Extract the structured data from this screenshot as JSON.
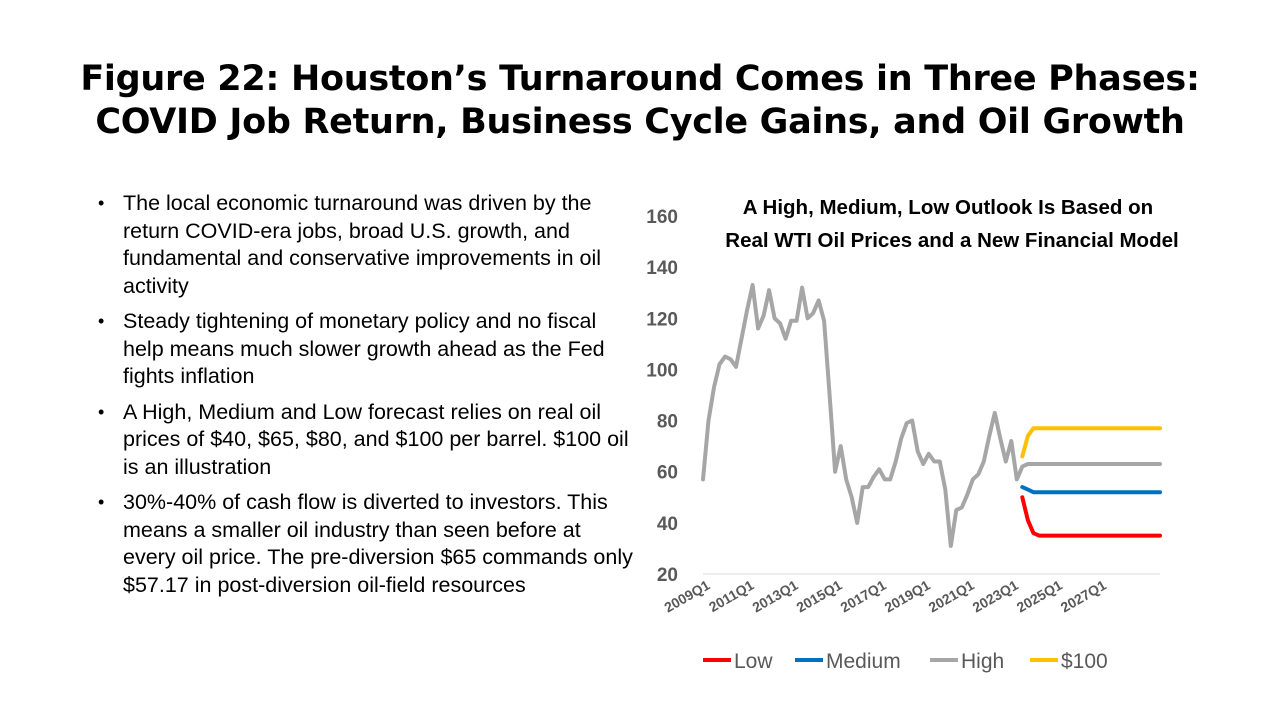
{
  "slide": {
    "title_line1": "Figure 22: Houston’s Turnaround Comes in Three Phases:",
    "title_line2": "COVID Job Return, Business Cycle Gains, and Oil Growth"
  },
  "bullets": [
    "The local economic turnaround was driven by the return COVID-era jobs, broad U.S. growth, and fundamental and conservative improvements in oil activity",
    "Steady tightening of monetary policy and no fiscal help means much slower growth ahead as the Fed fights inflation",
    "A High, Medium and Low forecast relies on real oil prices of $40, $65, $80, and $100 per barrel.  $100 oil is an illustration",
    "30%-40% of cash flow is diverted  to investors. This means a smaller oil industry than seen before at every oil price.  The pre-diversion $65 commands only $57.17 in post-diversion oil-field resources"
  ],
  "chart_data": {
    "type": "line",
    "title_line1": "A High, Medium, Low Outlook Is Based on",
    "title_line2": "Real WTI Oil Prices and a New Financial Model",
    "xlabel": "",
    "ylabel": "",
    "ylim": [
      20,
      160
    ],
    "yticks": [
      20,
      40,
      60,
      80,
      100,
      120,
      140,
      160
    ],
    "x_start": "2009Q1",
    "x_end": "2029Q4",
    "xtick_labels": [
      "2009Q1",
      "2011Q1",
      "2013Q1",
      "2015Q1",
      "2017Q1",
      "2019Q1",
      "2021Q1",
      "2023Q1",
      "2025Q1",
      "2027Q1"
    ],
    "grid": "none",
    "legend_position": "bottom",
    "series": [
      {
        "name": "Low",
        "color": "#ff0000",
        "x": [
          "2023Q3",
          "2023Q4",
          "2024Q1",
          "2024Q2",
          "2029Q4"
        ],
        "values": [
          50,
          41,
          36,
          35,
          35
        ]
      },
      {
        "name": "Medium",
        "color": "#0070c0",
        "x": [
          "2023Q3",
          "2023Q4",
          "2024Q1",
          "2029Q4"
        ],
        "values": [
          54,
          53,
          52,
          52
        ]
      },
      {
        "name": "High",
        "color": "#a6a6a6",
        "x": [
          "2009Q1",
          "2009Q2",
          "2009Q3",
          "2009Q4",
          "2010Q1",
          "2010Q2",
          "2010Q3",
          "2010Q4",
          "2011Q1",
          "2011Q2",
          "2011Q3",
          "2011Q4",
          "2012Q1",
          "2012Q2",
          "2012Q3",
          "2012Q4",
          "2013Q1",
          "2013Q2",
          "2013Q3",
          "2013Q4",
          "2014Q1",
          "2014Q2",
          "2014Q3",
          "2014Q4",
          "2015Q1",
          "2015Q2",
          "2015Q3",
          "2015Q4",
          "2016Q1",
          "2016Q2",
          "2016Q3",
          "2016Q4",
          "2017Q1",
          "2017Q2",
          "2017Q3",
          "2017Q4",
          "2018Q1",
          "2018Q2",
          "2018Q3",
          "2018Q4",
          "2019Q1",
          "2019Q2",
          "2019Q3",
          "2019Q4",
          "2020Q1",
          "2020Q2",
          "2020Q3",
          "2020Q4",
          "2021Q1",
          "2021Q2",
          "2021Q3",
          "2021Q4",
          "2022Q1",
          "2022Q2",
          "2022Q3",
          "2022Q4",
          "2023Q1",
          "2023Q2",
          "2023Q3",
          "2023Q4",
          "2024Q1",
          "2029Q4"
        ],
        "values": [
          57,
          80,
          93,
          102,
          105,
          104,
          101,
          112,
          123,
          133,
          116,
          121,
          131,
          120,
          118,
          112,
          119,
          119,
          132,
          120,
          122,
          127,
          119,
          90,
          60,
          70,
          57,
          50,
          40,
          54,
          54,
          58,
          61,
          57,
          57,
          64,
          73,
          79,
          80,
          68,
          63,
          67,
          64,
          64,
          53,
          31,
          45,
          46,
          51,
          57,
          59,
          64,
          74,
          83,
          73,
          64,
          72,
          57,
          62,
          63,
          63,
          63
        ]
      },
      {
        "name": "$100",
        "color": "#ffc000",
        "x": [
          "2023Q3",
          "2023Q4",
          "2024Q1",
          "2029Q4"
        ],
        "values": [
          66,
          74,
          77,
          77
        ]
      }
    ]
  }
}
